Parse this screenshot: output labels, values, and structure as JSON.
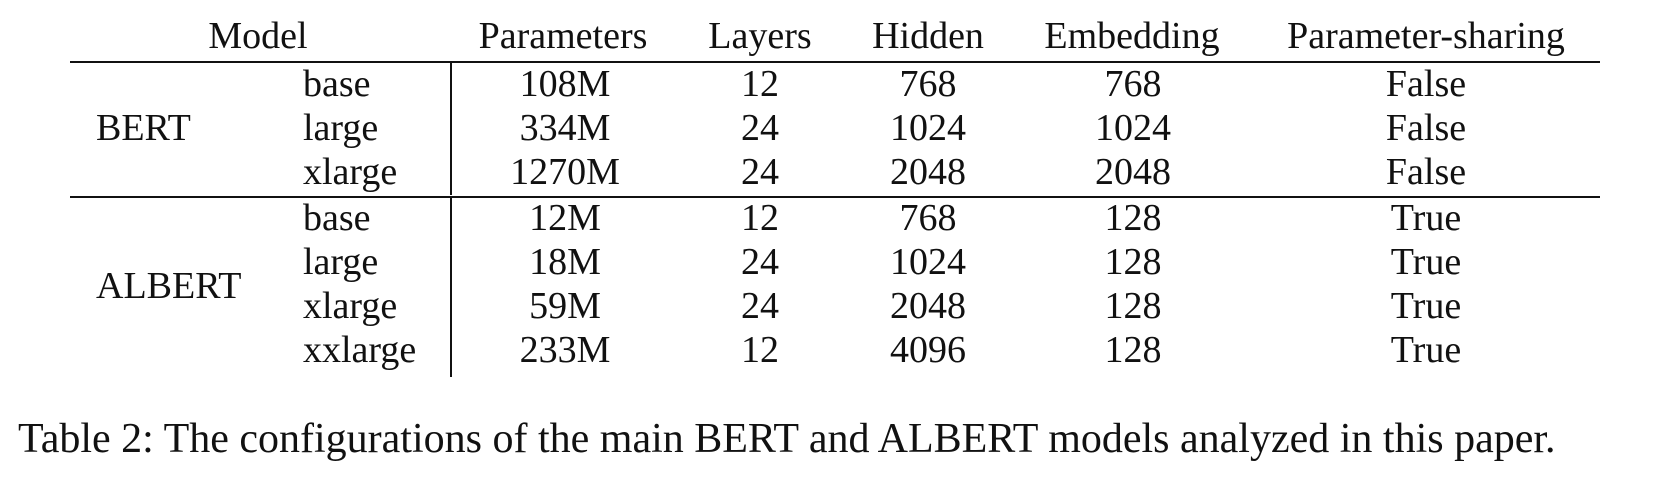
{
  "table": {
    "headers": [
      "Model",
      "Parameters",
      "Layers",
      "Hidden",
      "Embedding",
      "Parameter-sharing"
    ],
    "groups": [
      {
        "name": "BERT",
        "rows": [
          {
            "variant": "base",
            "parameters": "108M",
            "layers": "12",
            "hidden": "768",
            "embedding": "768",
            "sharing": "False"
          },
          {
            "variant": "large",
            "parameters": "334M",
            "layers": "24",
            "hidden": "1024",
            "embedding": "1024",
            "sharing": "False"
          },
          {
            "variant": "xlarge",
            "parameters": "1270M",
            "layers": "24",
            "hidden": "2048",
            "embedding": "2048",
            "sharing": "False"
          }
        ]
      },
      {
        "name": "ALBERT",
        "rows": [
          {
            "variant": "base",
            "parameters": "12M",
            "layers": "12",
            "hidden": "768",
            "embedding": "128",
            "sharing": "True"
          },
          {
            "variant": "large",
            "parameters": "18M",
            "layers": "24",
            "hidden": "1024",
            "embedding": "128",
            "sharing": "True"
          },
          {
            "variant": "xlarge",
            "parameters": "59M",
            "layers": "24",
            "hidden": "2048",
            "embedding": "128",
            "sharing": "True"
          },
          {
            "variant": "xxlarge",
            "parameters": "233M",
            "layers": "12",
            "hidden": "4096",
            "embedding": "128",
            "sharing": "True"
          }
        ]
      }
    ]
  },
  "caption": "Table 2: The configurations of the main BERT and ALBERT models analyzed in this paper."
}
